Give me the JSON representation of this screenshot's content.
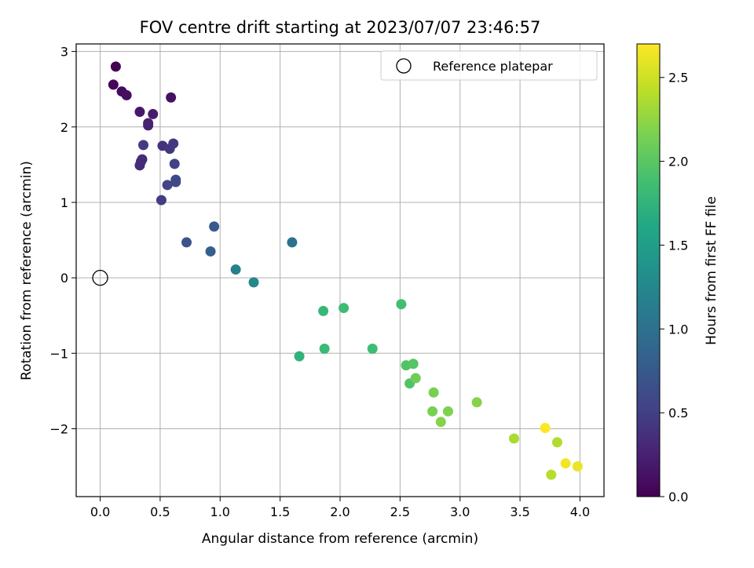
{
  "chart_data": {
    "type": "scatter",
    "title": "FOV centre drift starting at 2023/07/07 23:46:57",
    "xlabel": "Angular distance from reference (arcmin)",
    "ylabel": "Rotation from reference (arcmin)",
    "xlim": [
      -0.2,
      4.2
    ],
    "ylim": [
      -2.9,
      3.1
    ],
    "xticks": [
      0.0,
      0.5,
      1.0,
      1.5,
      2.0,
      2.5,
      3.0,
      3.5,
      4.0
    ],
    "xtick_labels": [
      "0.0",
      "0.5",
      "1.0",
      "1.5",
      "2.0",
      "2.5",
      "3.0",
      "3.5",
      "4.0"
    ],
    "yticks": [
      3,
      2,
      1,
      0,
      -1,
      -2
    ],
    "ytick_labels": [
      "3",
      "2",
      "1",
      "0",
      "−1",
      "−2"
    ],
    "grid": true,
    "legend": {
      "position": "top-right",
      "entries": [
        {
          "label": "Reference platepar",
          "marker": "open-circle"
        }
      ]
    },
    "reference_point": {
      "x": 0.0,
      "y": 0.0
    },
    "colorbar": {
      "label": "Hours from first FF file",
      "colormap": "viridis",
      "range": [
        0.0,
        2.7
      ],
      "ticks": [
        0.0,
        0.5,
        1.0,
        1.5,
        2.0,
        2.5
      ],
      "tick_labels": [
        "0.0",
        "0.5",
        "1.0",
        "1.5",
        "2.0",
        "2.5"
      ]
    },
    "points": [
      {
        "x": 0.13,
        "y": 2.8,
        "c": 0.0
      },
      {
        "x": 0.11,
        "y": 2.56,
        "c": 0.05
      },
      {
        "x": 0.18,
        "y": 2.47,
        "c": 0.08
      },
      {
        "x": 0.22,
        "y": 2.42,
        "c": 0.1
      },
      {
        "x": 0.59,
        "y": 2.39,
        "c": 0.12
      },
      {
        "x": 0.33,
        "y": 2.2,
        "c": 0.18
      },
      {
        "x": 0.44,
        "y": 2.17,
        "c": 0.2
      },
      {
        "x": 0.4,
        "y": 2.05,
        "c": 0.24
      },
      {
        "x": 0.4,
        "y": 2.02,
        "c": 0.26
      },
      {
        "x": 0.34,
        "y": 1.54,
        "c": 0.3
      },
      {
        "x": 0.35,
        "y": 1.57,
        "c": 0.32
      },
      {
        "x": 0.33,
        "y": 1.49,
        "c": 0.34
      },
      {
        "x": 0.52,
        "y": 1.75,
        "c": 0.4
      },
      {
        "x": 0.58,
        "y": 1.71,
        "c": 0.42
      },
      {
        "x": 0.61,
        "y": 1.78,
        "c": 0.45
      },
      {
        "x": 0.36,
        "y": 1.76,
        "c": 0.47
      },
      {
        "x": 0.51,
        "y": 1.03,
        "c": 0.48
      },
      {
        "x": 0.62,
        "y": 1.51,
        "c": 0.52
      },
      {
        "x": 0.56,
        "y": 1.23,
        "c": 0.55
      },
      {
        "x": 0.63,
        "y": 1.3,
        "c": 0.58
      },
      {
        "x": 0.63,
        "y": 1.27,
        "c": 0.6
      },
      {
        "x": 0.72,
        "y": 0.47,
        "c": 0.7
      },
      {
        "x": 0.95,
        "y": 0.68,
        "c": 0.75
      },
      {
        "x": 0.92,
        "y": 0.35,
        "c": 0.82
      },
      {
        "x": 1.13,
        "y": 0.11,
        "c": 1.15
      },
      {
        "x": 1.28,
        "y": -0.06,
        "c": 1.25
      },
      {
        "x": 1.6,
        "y": 0.47,
        "c": 1.0
      },
      {
        "x": 1.66,
        "y": -1.04,
        "c": 1.75
      },
      {
        "x": 1.86,
        "y": -0.44,
        "c": 1.8
      },
      {
        "x": 1.87,
        "y": -0.94,
        "c": 1.82
      },
      {
        "x": 2.03,
        "y": -0.4,
        "c": 1.85
      },
      {
        "x": 2.27,
        "y": -0.94,
        "c": 1.85
      },
      {
        "x": 2.51,
        "y": -0.35,
        "c": 1.88
      },
      {
        "x": 2.55,
        "y": -1.16,
        "c": 1.95
      },
      {
        "x": 2.58,
        "y": -1.4,
        "c": 1.95
      },
      {
        "x": 2.61,
        "y": -1.14,
        "c": 1.98
      },
      {
        "x": 2.63,
        "y": -1.33,
        "c": 2.1
      },
      {
        "x": 2.78,
        "y": -1.52,
        "c": 2.15
      },
      {
        "x": 2.77,
        "y": -1.77,
        "c": 2.15
      },
      {
        "x": 2.84,
        "y": -1.91,
        "c": 2.2
      },
      {
        "x": 2.9,
        "y": -1.77,
        "c": 2.18
      },
      {
        "x": 3.14,
        "y": -1.65,
        "c": 2.2
      },
      {
        "x": 3.45,
        "y": -2.13,
        "c": 2.35
      },
      {
        "x": 3.71,
        "y": -1.99,
        "c": 2.7
      },
      {
        "x": 3.76,
        "y": -2.61,
        "c": 2.4
      },
      {
        "x": 3.81,
        "y": -2.18,
        "c": 2.38
      },
      {
        "x": 3.88,
        "y": -2.46,
        "c": 2.65
      },
      {
        "x": 3.98,
        "y": -2.5,
        "c": 2.62
      }
    ]
  }
}
